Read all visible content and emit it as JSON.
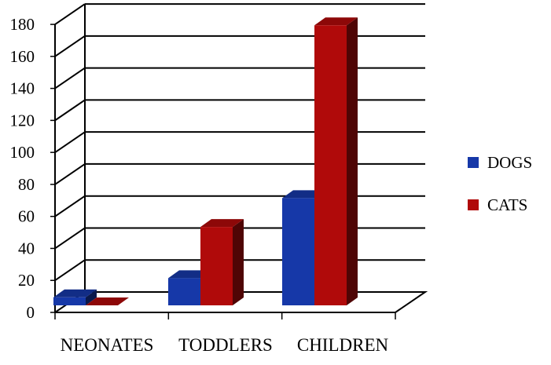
{
  "chart_data": {
    "type": "bar",
    "style": "3d-clustered-column",
    "title": "",
    "xlabel": "",
    "ylabel": "",
    "categories": [
      "NEONATES",
      "TODDLERS",
      "CHILDREN"
    ],
    "series": [
      {
        "name": "DOGS",
        "values": [
          5,
          17,
          67
        ],
        "color": "#1638a8"
      },
      {
        "name": "CATS",
        "values": [
          0,
          49,
          175
        ],
        "color": "#b00a0a"
      }
    ],
    "ylim": [
      0,
      180
    ],
    "yticks": [
      "0",
      "20",
      "40",
      "60",
      "80",
      "100",
      "120",
      "140",
      "160",
      "180"
    ],
    "grid": true,
    "legend": "right"
  }
}
